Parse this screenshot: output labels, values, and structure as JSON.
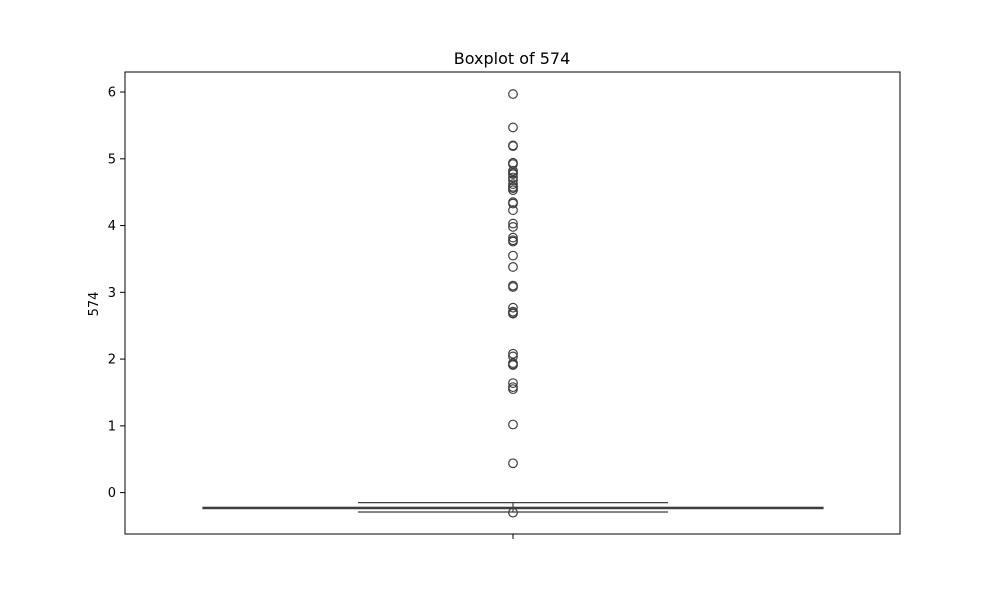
{
  "chart_data": {
    "type": "boxplot",
    "title": "Boxplot of 574",
    "xlabel": "",
    "ylabel": "574",
    "ylim": [
      -0.62,
      6.3
    ],
    "yticks": [
      0,
      1,
      2,
      3,
      4,
      5,
      6
    ],
    "grid": false,
    "box": {
      "q1": -0.24,
      "median": -0.23,
      "q3": -0.22,
      "whisker_low": -0.29,
      "whisker_high": -0.15
    },
    "outliers": [
      5.97,
      5.47,
      5.2,
      5.19,
      4.94,
      4.92,
      4.82,
      4.79,
      4.77,
      4.72,
      4.68,
      4.62,
      4.58,
      4.56,
      4.53,
      4.35,
      4.33,
      4.23,
      4.03,
      3.98,
      3.82,
      3.78,
      3.76,
      3.55,
      3.38,
      3.1,
      3.08,
      2.77,
      2.71,
      2.69,
      2.68,
      2.08,
      2.04,
      1.94,
      1.92,
      1.91,
      1.64,
      1.58,
      1.55,
      1.02,
      0.44,
      -0.3
    ],
    "colors": {
      "box_edge": "#3f3f3f",
      "frame": "#000000"
    }
  }
}
